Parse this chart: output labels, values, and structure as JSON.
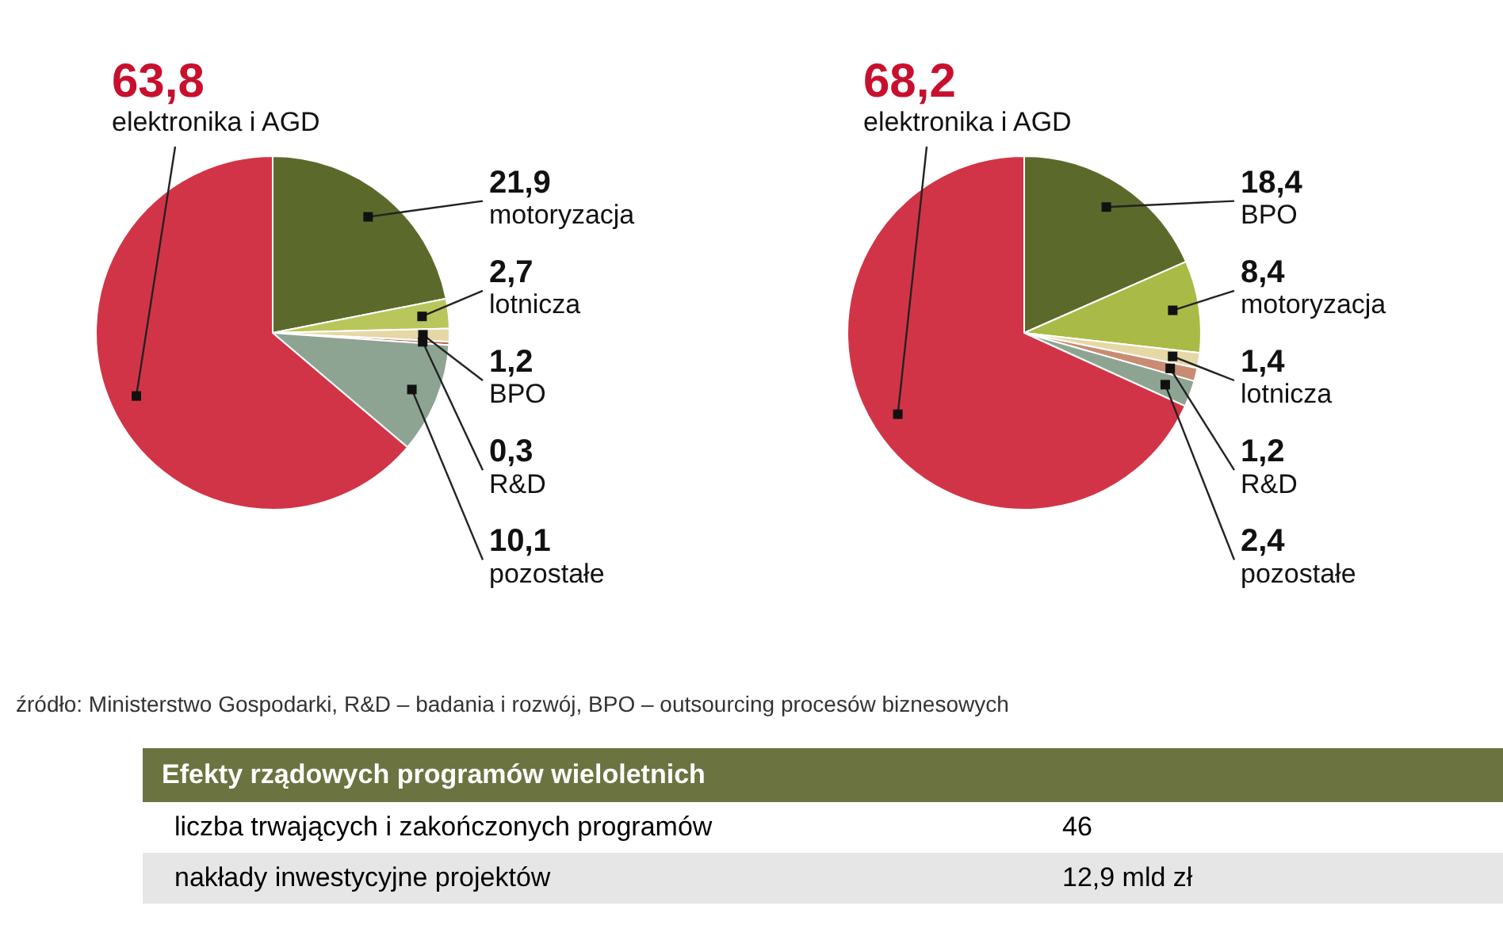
{
  "chart_data": [
    {
      "type": "pie",
      "categories": [
        "motoryzacja",
        "lotnicza",
        "BPO",
        "R&D",
        "pozostałe",
        "elektronika i AGD"
      ],
      "values": [
        21.9,
        2.7,
        1.2,
        0.3,
        10.1,
        63.8
      ],
      "value_labels": [
        "21,9",
        "2,7",
        "1,2",
        "0,3",
        "10,1",
        "63,8"
      ],
      "colors": [
        "#5b6a2b",
        "#b9c65c",
        "#e6d7a6",
        "#b36a58",
        "#8ea493",
        "#d23447"
      ],
      "annotations": [
        "źródło: Ministerstwo Gospodarki, R&D – badania i rozwój, BPO – outsourcing procesów biznesowych"
      ]
    },
    {
      "type": "pie",
      "categories": [
        "BPO",
        "motoryzacja",
        "lotnicza",
        "R&D",
        "pozostałe",
        "elektronika i AGD"
      ],
      "values": [
        18.4,
        8.4,
        1.4,
        1.2,
        2.4,
        68.2
      ],
      "value_labels": [
        "18,4",
        "8,4",
        "1,4",
        "1,2",
        "2,4",
        "68,2"
      ],
      "colors": [
        "#5b6a2b",
        "#a9bb46",
        "#e6d7a6",
        "#c98b72",
        "#8ea493",
        "#d23447"
      ]
    },
    {
      "type": "other",
      "title": "Efekty rządowych programów wieloletnich",
      "annotations": [
        "liczba trwających i zakończonych programów",
        "46",
        "nakłady inwestycyjne projektów",
        "12,9 mld zł"
      ]
    }
  ]
}
